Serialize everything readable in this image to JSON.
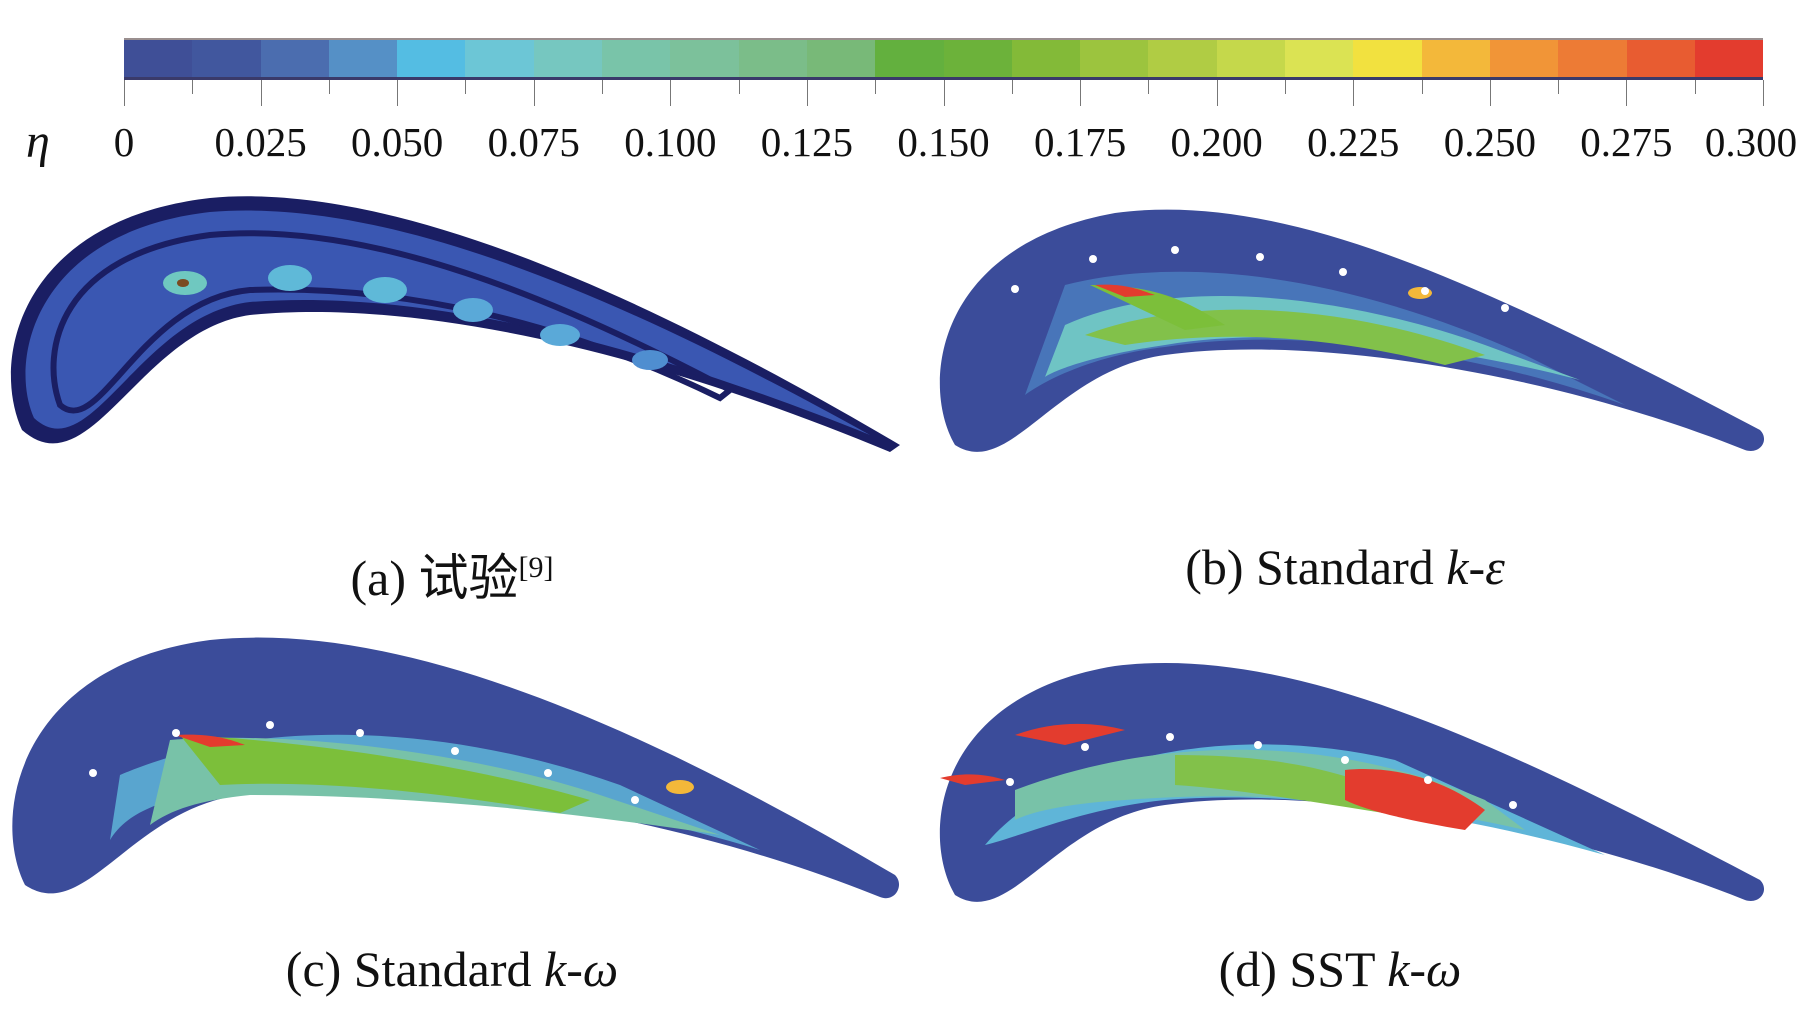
{
  "colorbar": {
    "symbol": "η",
    "min": 0,
    "max": 0.3,
    "tick_labels": [
      "0",
      "0.025",
      "0.050",
      "0.075",
      "0.100",
      "0.125",
      "0.150",
      "0.175",
      "0.200",
      "0.225",
      "0.250",
      "0.275",
      "0.300"
    ],
    "colors": [
      "#3f4f97",
      "#41579e",
      "#4b6daf",
      "#5590c6",
      "#54bde3",
      "#6cc6d6",
      "#76c7c0",
      "#79c4a9",
      "#7cc19b",
      "#7bbd89",
      "#78b978",
      "#63b03e",
      "#6cb23a",
      "#83ba38",
      "#9cc43e",
      "#b0cc44",
      "#c5d84b",
      "#dbe353",
      "#f2e13f",
      "#f3b83a",
      "#f19537",
      "#ed7b35",
      "#e85c31",
      "#e33c2e"
    ]
  },
  "panels": [
    {
      "id": "a",
      "caption": {
        "prefix": "(a) ",
        "text": "试验",
        "sup": "[9]"
      }
    },
    {
      "id": "b",
      "caption": {
        "prefix": "(b) Standard ",
        "k": "k",
        "dash": "-",
        "model": "ε"
      }
    },
    {
      "id": "c",
      "caption": {
        "prefix": "(c) Standard ",
        "k": "k",
        "dash": "-",
        "model": "ω"
      }
    },
    {
      "id": "d",
      "caption": {
        "prefix": "(d) SST ",
        "k": "k",
        "dash": "-",
        "model": "ω"
      }
    }
  ]
}
